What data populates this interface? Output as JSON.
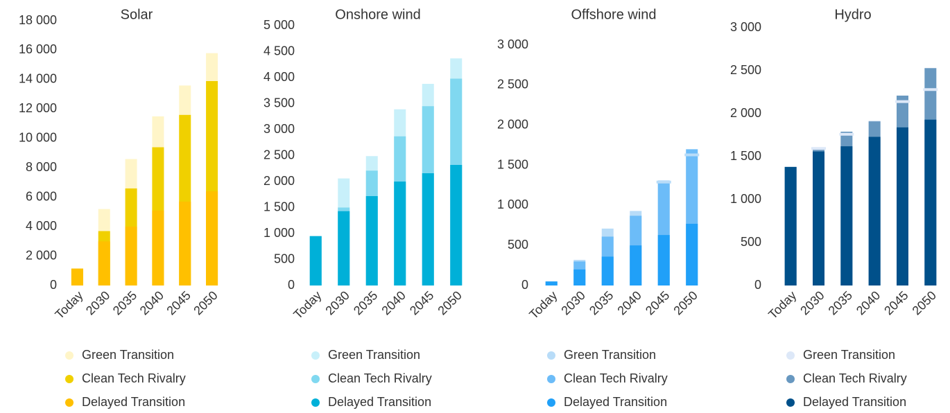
{
  "chart_data": [
    {
      "type": "bar",
      "title": "Solar",
      "categories": [
        "Today",
        "2030",
        "2035",
        "2040",
        "2045",
        "2050"
      ],
      "series": [
        {
          "name": "Green Transition",
          "color": "#fff5c8",
          "values": [
            1150,
            5200,
            8600,
            11500,
            13600,
            15800
          ]
        },
        {
          "name": "Clean Tech Rivalry",
          "color": "#f0d000",
          "values": [
            1150,
            3700,
            6600,
            9400,
            11600,
            13900
          ]
        },
        {
          "name": "Delayed Transition",
          "color": "#ffc000",
          "values": [
            1150,
            3000,
            4000,
            5100,
            5700,
            6400
          ]
        }
      ],
      "ylim": [
        0,
        18000
      ],
      "yticks": [
        0,
        {
          "value": 2000,
          "label": "2 000"
        },
        {
          "value": 4000,
          "label": "4 000"
        },
        {
          "value": 6000,
          "label": "6 000"
        },
        {
          "value": 8000,
          "label": "8 000"
        },
        {
          "value": 10000,
          "label": "10 000"
        },
        {
          "value": 12000,
          "label": "12 000"
        },
        {
          "value": 14000,
          "label": "14 000"
        },
        {
          "value": 16000,
          "label": "16 000"
        },
        {
          "value": 18000,
          "label": "18 000"
        }
      ]
    },
    {
      "type": "bar",
      "title": "Onshore wind",
      "categories": [
        "Today",
        "2030",
        "2035",
        "2040",
        "2045",
        "2050"
      ],
      "series": [
        {
          "name": "Green Transition",
          "color": "#c8f0fa",
          "values": [
            950,
            2060,
            2490,
            3390,
            3880,
            4370
          ]
        },
        {
          "name": "Clean Tech Rivalry",
          "color": "#80d8f0",
          "values": [
            950,
            1500,
            2210,
            2870,
            3450,
            3980
          ]
        },
        {
          "name": "Delayed Transition",
          "color": "#00b0d8",
          "values": [
            950,
            1430,
            1720,
            2000,
            2160,
            2320
          ]
        }
      ],
      "ylim": [
        0,
        5000
      ],
      "yticks": [
        0,
        500,
        {
          "value": 1000,
          "label": "1 000"
        },
        {
          "value": 1500,
          "label": "1 500"
        },
        {
          "value": 2000,
          "label": "2 000"
        },
        {
          "value": 2500,
          "label": "2 500"
        },
        {
          "value": 3000,
          "label": "3 000"
        },
        {
          "value": 3500,
          "label": "3 500"
        },
        {
          "value": 4000,
          "label": "4 000"
        },
        {
          "value": 4500,
          "label": "4 500"
        },
        {
          "value": 5000,
          "label": "5 000"
        }
      ]
    },
    {
      "type": "bar",
      "title": "Offshore wind",
      "categories": [
        "Today",
        "2030",
        "2035",
        "2040",
        "2045",
        "2050"
      ],
      "series": [
        {
          "name": "Green Transition",
          "color": "#b8dcf8",
          "values": [
            50,
            320,
            710,
            930,
            1290,
            1630
          ]
        },
        {
          "name": "Clean Tech Rivalry",
          "color": "#6cbcf8",
          "values": [
            50,
            300,
            610,
            870,
            1310,
            1700
          ]
        },
        {
          "name": "Delayed Transition",
          "color": "#20a0f8",
          "values": [
            50,
            200,
            360,
            500,
            630,
            770
          ]
        }
      ],
      "ylim": [
        0,
        3000
      ],
      "yticks": [
        0,
        500,
        {
          "value": 1000,
          "label": "1 000"
        },
        {
          "value": 1500,
          "label": "1 500"
        },
        {
          "value": 2000,
          "label": "2 000"
        },
        {
          "value": 2500,
          "label": "2 500"
        },
        {
          "value": 3000,
          "label": "3 000"
        }
      ]
    },
    {
      "type": "bar",
      "title": "Hydro",
      "categories": [
        "Today",
        "2030",
        "2035",
        "2040",
        "2045",
        "2050"
      ],
      "series": [
        {
          "name": "Green Transition",
          "color": "#dde8f8",
          "values": [
            1380,
            1595,
            1760,
            1920,
            2140,
            2280
          ]
        },
        {
          "name": "Clean Tech Rivalry",
          "color": "#6898c0",
          "values": [
            1380,
            1600,
            1790,
            1910,
            2210,
            2530
          ]
        },
        {
          "name": "Delayed Transition",
          "color": "#00508a",
          "values": [
            1380,
            1560,
            1620,
            1730,
            1840,
            1930
          ]
        }
      ],
      "ylim": [
        0,
        3000
      ],
      "yticks": [
        0,
        500,
        {
          "value": 1000,
          "label": "1 000"
        },
        {
          "value": 1500,
          "label": "1 500"
        },
        {
          "value": 2000,
          "label": "2 000"
        },
        {
          "value": 2500,
          "label": "2 500"
        },
        {
          "value": 3000,
          "label": "3 000"
        }
      ]
    }
  ]
}
